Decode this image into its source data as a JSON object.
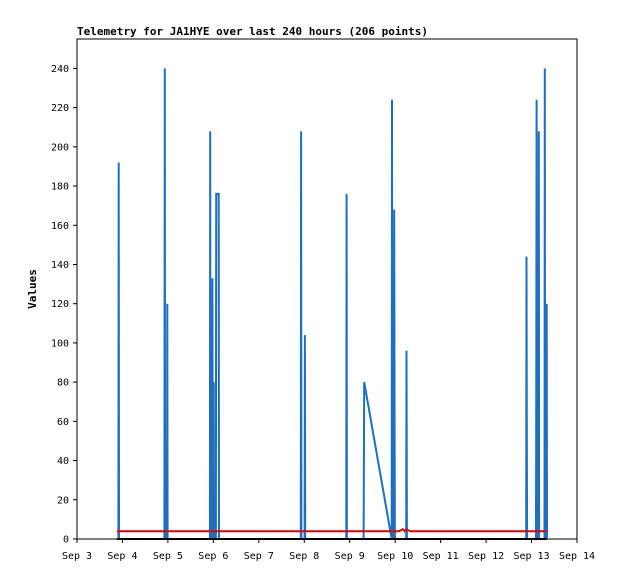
{
  "chart_data": {
    "type": "line",
    "title": "Telemetry for JA1HYE over last 240 hours (206 points)",
    "xlabel": "",
    "ylabel": "Values",
    "xlim": [
      "Sep 3",
      "Sep 14"
    ],
    "ylim": [
      0,
      255
    ],
    "grid": false,
    "legend": "none",
    "x_ticks": [
      "Sep 3",
      "Sep 4",
      "Sep 5",
      "Sep 6",
      "Sep 7",
      "Sep 8",
      "Sep 9",
      "Sep 10",
      "Sep 11",
      "Sep 12",
      "Sep 13",
      "Sep 14"
    ],
    "y_ticks": [
      0,
      20,
      40,
      60,
      80,
      100,
      120,
      140,
      160,
      180,
      200,
      220,
      240
    ],
    "series": [
      {
        "color": "#1f6fbf",
        "points": [
          [
            "Sep 3 21:50",
            0
          ],
          [
            "Sep 3 22:00",
            192
          ],
          [
            "Sep 3 22:10",
            0
          ],
          [
            "Sep 4 22:10",
            0
          ],
          [
            "Sep 4 22:20",
            240
          ],
          [
            "Sep 4 22:30",
            0
          ],
          [
            "Sep 4 23:30",
            0
          ],
          [
            "Sep 4 23:40",
            120
          ],
          [
            "Sep 4 23:50",
            0
          ],
          [
            "Sep 5 22:10",
            0
          ],
          [
            "Sep 5 22:20",
            208
          ],
          [
            "Sep 5 22:30",
            0
          ],
          [
            "Sep 5 23:20",
            0
          ],
          [
            "Sep 5 23:30",
            133
          ],
          [
            "Sep 5 23:40",
            28
          ],
          [
            "Sep 6 00:10",
            80
          ],
          [
            "Sep 6 00:20",
            0
          ],
          [
            "Sep 6 01:20",
            0
          ],
          [
            "Sep 6 01:30",
            176
          ],
          [
            "Sep 6 02:50",
            176
          ],
          [
            "Sep 6 03:00",
            0
          ],
          [
            "Sep 7 22:10",
            0
          ],
          [
            "Sep 7 22:20",
            208
          ],
          [
            "Sep 7 22:30",
            0
          ],
          [
            "Sep 8 00:10",
            0
          ],
          [
            "Sep 8 00:20",
            104
          ],
          [
            "Sep 8 00:30",
            0
          ],
          [
            "Sep 8 22:10",
            0
          ],
          [
            "Sep 8 22:20",
            176
          ],
          [
            "Sep 8 22:30",
            0
          ],
          [
            "Sep 9 07:20",
            0
          ],
          [
            "Sep 9 07:30",
            40
          ],
          [
            "Sep 9 07:40",
            80
          ],
          [
            "Sep 9 22:10",
            0
          ],
          [
            "Sep 9 22:20",
            224
          ],
          [
            "Sep 9 22:30",
            0
          ],
          [
            "Sep 9 23:20",
            0
          ],
          [
            "Sep 9 23:30",
            168
          ],
          [
            "Sep 9 23:40",
            56
          ],
          [
            "Sep 9 23:50",
            0
          ],
          [
            "Sep 10 05:50",
            0
          ],
          [
            "Sep 10 06:00",
            96
          ],
          [
            "Sep 10 06:10",
            0
          ],
          [
            "Sep 12 21:10",
            0
          ],
          [
            "Sep 12 21:20",
            144
          ],
          [
            "Sep 12 21:30",
            56
          ],
          [
            "Sep 12 21:40",
            0
          ],
          [
            "Sep 13 02:20",
            0
          ],
          [
            "Sep 13 02:30",
            88
          ],
          [
            "Sep 13 02:40",
            224
          ],
          [
            "Sep 13 02:50",
            0
          ],
          [
            "Sep 13 03:40",
            0
          ],
          [
            "Sep 13 03:50",
            208
          ],
          [
            "Sep 13 04:00",
            0
          ],
          [
            "Sep 13 06:50",
            0
          ],
          [
            "Sep 13 07:00",
            240
          ],
          [
            "Sep 13 07:10",
            0
          ],
          [
            "Sep 13 07:50",
            0
          ],
          [
            "Sep 13 08:00",
            120
          ],
          [
            "Sep 13 08:10",
            0
          ]
        ]
      },
      {
        "color": "#e00000",
        "points": [
          [
            "Sep 3 21:00",
            4
          ],
          [
            "Sep 9 23:30",
            4
          ],
          [
            "Sep 10 02:00",
            4
          ],
          [
            "Sep 10 04:00",
            5
          ],
          [
            "Sep 10 05:00",
            4
          ],
          [
            "Sep 10 06:00",
            5
          ],
          [
            "Sep 10 08:00",
            4
          ],
          [
            "Sep 13 08:00",
            4
          ]
        ]
      },
      {
        "color": "#000000",
        "points": [
          [
            "Sep 3 21:00",
            0
          ],
          [
            "Sep 13 08:00",
            0
          ]
        ]
      }
    ]
  }
}
